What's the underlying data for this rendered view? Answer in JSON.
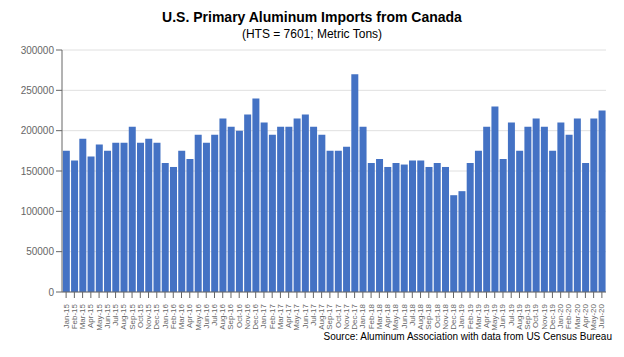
{
  "chart_data": {
    "type": "bar",
    "title": "U.S. Primary Aluminum Imports from Canada",
    "subtitle": "(HTS = 7601; Metric Tons)",
    "annotations": [
      "Source: Aluminum Association with data from US Census Bureau"
    ],
    "categories": [
      "Jan-15",
      "Feb-15",
      "Mar-15",
      "Apr-15",
      "May-15",
      "Jun-15",
      "Jul-15",
      "Aug-15",
      "Sep-15",
      "Oct-15",
      "Nov-15",
      "Dec-15",
      "Jan-16",
      "Feb-16",
      "Mar-16",
      "Apr-16",
      "May-16",
      "Jun-16",
      "Jul-16",
      "Aug-16",
      "Sep-16",
      "Oct-16",
      "Nov-16",
      "Dec-16",
      "Jan-17",
      "Feb-17",
      "Mar-17",
      "Apr-17",
      "May-17",
      "Jun-17",
      "Jul-17",
      "Aug-17",
      "Sep-17",
      "Oct-17",
      "Nov-17",
      "Dec-17",
      "Jan-18",
      "Feb-18",
      "Mar-18",
      "Apr-18",
      "May-18",
      "Jun-18",
      "Jul-18",
      "Aug-18",
      "Sep-18",
      "Oct-18",
      "Nov-18",
      "Dec-18",
      "Jan-19",
      "Feb-19",
      "Mar-19",
      "Apr-19",
      "May-19",
      "Jun-19",
      "Jul-19",
      "Aug-19",
      "Sep-19",
      "Oct-19",
      "Nov-19",
      "Dec-19",
      "Jan-20",
      "Feb-20",
      "Mar-20",
      "Apr-20",
      "May-20",
      "Jun-20"
    ],
    "values": [
      175000,
      163000,
      190000,
      168000,
      183000,
      175000,
      185000,
      185000,
      205000,
      185000,
      190000,
      185000,
      160000,
      155000,
      175000,
      165000,
      195000,
      185000,
      195000,
      215000,
      205000,
      200000,
      220000,
      240000,
      210000,
      195000,
      205000,
      205000,
      215000,
      220000,
      205000,
      195000,
      175000,
      175000,
      180000,
      270000,
      205000,
      160000,
      165000,
      155000,
      160000,
      158000,
      163000,
      163000,
      155000,
      160000,
      155000,
      120000,
      125000,
      160000,
      175000,
      205000,
      230000,
      165000,
      210000,
      175000,
      205000,
      215000,
      205000,
      175000,
      210000,
      195000,
      215000,
      160000,
      215000,
      225000
    ],
    "color": "#4472C4",
    "ylim": [
      0,
      300000
    ],
    "yticks": [
      0,
      50000,
      100000,
      150000,
      200000,
      250000,
      300000
    ],
    "grid": true
  }
}
